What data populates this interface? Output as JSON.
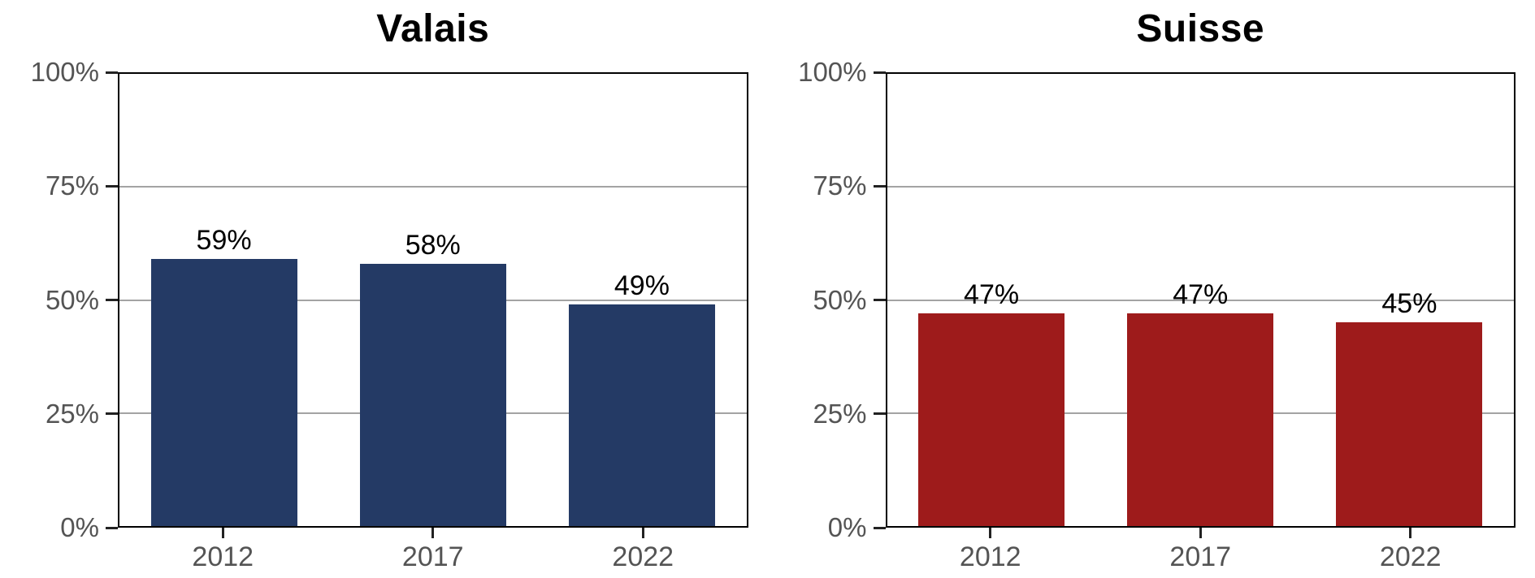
{
  "chart_data": [
    {
      "type": "bar",
      "title": "Valais",
      "categories": [
        "2012",
        "2017",
        "2022"
      ],
      "values": [
        59,
        58,
        49
      ],
      "value_labels": [
        "59%",
        "58%",
        "49%"
      ],
      "bar_color": "#243a65",
      "ylim": [
        0,
        100
      ],
      "yticks": [
        "100%",
        "75%",
        "50%",
        "25%",
        "0%"
      ],
      "xlabel": "",
      "ylabel": "",
      "grid": "horizontal gridlines at 25%, 50%, 75%",
      "legend": "none"
    },
    {
      "type": "bar",
      "title": "Suisse",
      "categories": [
        "2012",
        "2017",
        "2022"
      ],
      "values": [
        47,
        47,
        45
      ],
      "value_labels": [
        "47%",
        "47%",
        "45%"
      ],
      "bar_color": "#9e1b1b",
      "ylim": [
        0,
        100
      ],
      "yticks": [
        "100%",
        "75%",
        "50%",
        "25%",
        "0%"
      ],
      "xlabel": "",
      "ylabel": "",
      "grid": "horizontal gridlines at 25%, 50%, 75%",
      "legend": "none"
    }
  ],
  "colors": {
    "valais_bar": "#243a65",
    "suisse_bar": "#9e1b1b",
    "axis_border": "#000000",
    "gridline": "#a3a3a3",
    "tick_label": "#545454",
    "value_label": "#000000",
    "background": "#ffffff"
  }
}
